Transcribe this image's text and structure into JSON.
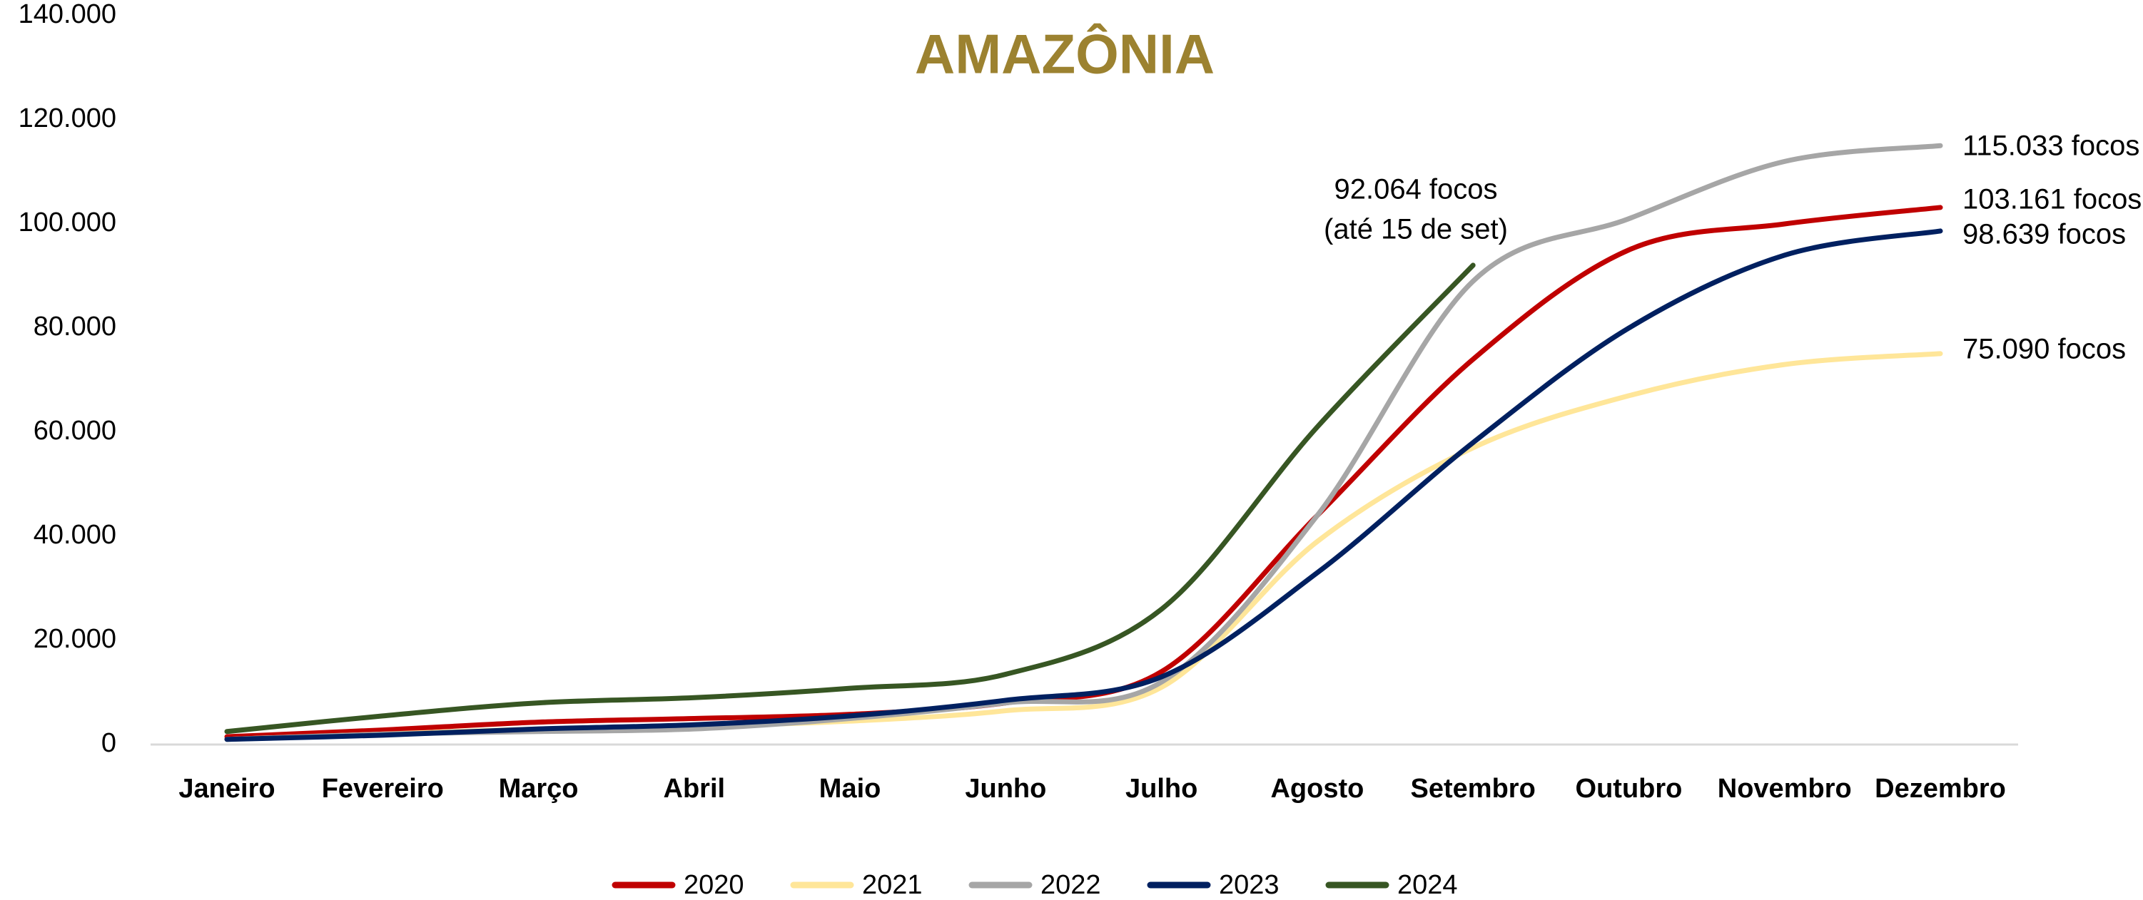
{
  "chart_data": {
    "type": "line",
    "title": "AMAZÔNIA",
    "categories": [
      "Janeiro",
      "Fevereiro",
      "Março",
      "Abril",
      "Maio",
      "Junho",
      "Julho",
      "Agosto",
      "Setembro",
      "Outubro",
      "Novembro",
      "Dezembro"
    ],
    "series": [
      {
        "name": "2020",
        "color": "#c00000",
        "values": [
          1500,
          2800,
          4300,
          5000,
          5800,
          8000,
          14000,
          44000,
          74000,
          95000,
          100000,
          103161
        ]
      },
      {
        "name": "2021",
        "color": "#ffe699",
        "values": [
          1000,
          2000,
          3000,
          3500,
          4500,
          6500,
          11000,
          39000,
          57000,
          67000,
          73000,
          75090
        ]
      },
      {
        "name": "2022",
        "color": "#a6a6a6",
        "values": [
          1000,
          2000,
          2500,
          3000,
          5000,
          8000,
          12000,
          44000,
          89000,
          101000,
          112000,
          115033
        ]
      },
      {
        "name": "2023",
        "color": "#002060",
        "values": [
          1000,
          1800,
          3000,
          3800,
          5500,
          8500,
          13000,
          33000,
          58000,
          80000,
          94000,
          98639
        ]
      },
      {
        "name": "2024",
        "color": "#375623",
        "values": [
          2500,
          5500,
          8000,
          9000,
          10800,
          13500,
          26000,
          61000,
          92064,
          null,
          null,
          null
        ]
      }
    ],
    "annotations": [
      "92.064 focos",
      "(até 15 de set)",
      "115.033 focos",
      "103.161 focos",
      "98.639 focos",
      "75.090 focos"
    ],
    "ylim": [
      0,
      140000
    ],
    "yticks": [
      0,
      {
        "value": 20000,
        "label": "20.000"
      },
      {
        "value": 40000,
        "label": "40.000"
      },
      {
        "value": 60000,
        "label": "60.000"
      },
      {
        "value": 80000,
        "label": "80.000"
      },
      {
        "value": 100000,
        "label": "100.000"
      },
      {
        "value": 120000,
        "label": "120.000"
      },
      {
        "value": 140000,
        "label": "140.000"
      }
    ],
    "grid": false,
    "legend": "bottom"
  }
}
